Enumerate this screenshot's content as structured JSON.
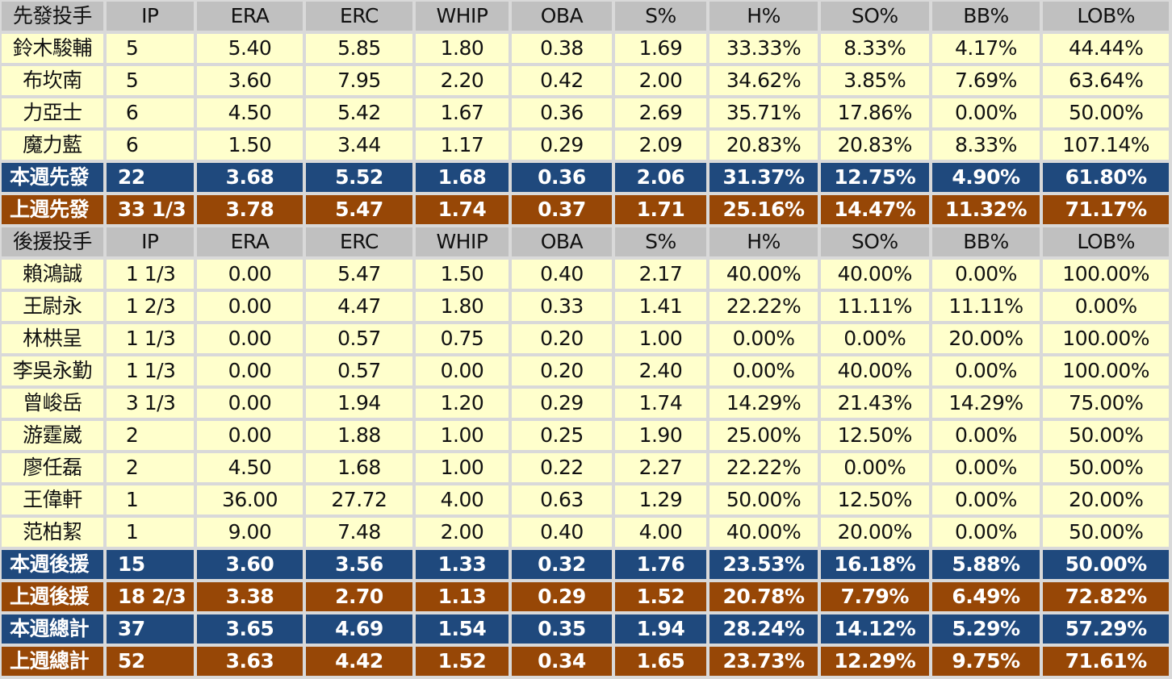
{
  "colors": {
    "header": "#c0c0c0",
    "row": "#ffffcc",
    "this_week": "#1f497d",
    "last_week": "#974706"
  },
  "columns": [
    "IP",
    "ERA",
    "ERC",
    "WHIP",
    "OBA",
    "S%",
    "H%",
    "SO%",
    "BB%",
    "LOB%"
  ],
  "sections": [
    {
      "title": "先發投手",
      "rows": [
        {
          "type": "row",
          "cells": [
            "鈴木駿輔",
            "5",
            "5.40",
            "5.85",
            "1.80",
            "0.38",
            "1.69",
            "33.33%",
            "8.33%",
            "4.17%",
            "44.44%"
          ]
        },
        {
          "type": "row",
          "cells": [
            "布坎南",
            "5",
            "3.60",
            "7.95",
            "2.20",
            "0.42",
            "2.00",
            "34.62%",
            "3.85%",
            "7.69%",
            "63.64%"
          ]
        },
        {
          "type": "row",
          "cells": [
            "力亞士",
            "6",
            "4.50",
            "5.42",
            "1.67",
            "0.36",
            "2.69",
            "35.71%",
            "17.86%",
            "0.00%",
            "50.00%"
          ]
        },
        {
          "type": "row",
          "cells": [
            "魔力藍",
            "6",
            "1.50",
            "3.44",
            "1.17",
            "0.29",
            "2.09",
            "20.83%",
            "20.83%",
            "8.33%",
            "107.14%"
          ]
        },
        {
          "type": "cur",
          "cells": [
            "本週先發",
            "22",
            "3.68",
            "5.52",
            "1.68",
            "0.36",
            "2.06",
            "31.37%",
            "12.75%",
            "4.90%",
            "61.80%"
          ]
        },
        {
          "type": "prev",
          "cells": [
            "上週先發",
            "33 1/3",
            "3.78",
            "5.47",
            "1.74",
            "0.37",
            "1.71",
            "25.16%",
            "14.47%",
            "11.32%",
            "71.17%"
          ]
        }
      ]
    },
    {
      "title": "後援投手",
      "rows": [
        {
          "type": "row",
          "cells": [
            "賴鴻誠",
            "1 1/3",
            "0.00",
            "5.47",
            "1.50",
            "0.40",
            "2.17",
            "40.00%",
            "40.00%",
            "0.00%",
            "100.00%"
          ]
        },
        {
          "type": "row",
          "cells": [
            "王尉永",
            "1 2/3",
            "0.00",
            "4.47",
            "1.80",
            "0.33",
            "1.41",
            "22.22%",
            "11.11%",
            "11.11%",
            "0.00%"
          ]
        },
        {
          "type": "row",
          "cells": [
            "林栱呈",
            "1 1/3",
            "0.00",
            "0.57",
            "0.75",
            "0.20",
            "1.00",
            "0.00%",
            "0.00%",
            "20.00%",
            "100.00%"
          ]
        },
        {
          "type": "row",
          "cells": [
            "李吳永勤",
            "1 1/3",
            "0.00",
            "0.57",
            "0.00",
            "0.20",
            "2.40",
            "0.00%",
            "40.00%",
            "0.00%",
            "100.00%"
          ]
        },
        {
          "type": "row",
          "cells": [
            "曾峻岳",
            "3 1/3",
            "0.00",
            "1.94",
            "1.20",
            "0.29",
            "1.74",
            "14.29%",
            "21.43%",
            "14.29%",
            "75.00%"
          ]
        },
        {
          "type": "row",
          "cells": [
            "游霆崴",
            "2",
            "0.00",
            "1.88",
            "1.00",
            "0.25",
            "1.90",
            "25.00%",
            "12.50%",
            "0.00%",
            "50.00%"
          ]
        },
        {
          "type": "row",
          "cells": [
            "廖任磊",
            "2",
            "4.50",
            "1.68",
            "1.00",
            "0.22",
            "2.27",
            "22.22%",
            "0.00%",
            "0.00%",
            "50.00%"
          ]
        },
        {
          "type": "row",
          "cells": [
            "王偉軒",
            "1",
            "36.00",
            "27.72",
            "4.00",
            "0.63",
            "1.29",
            "50.00%",
            "12.50%",
            "0.00%",
            "20.00%"
          ]
        },
        {
          "type": "row",
          "cells": [
            "范柏絜",
            "1",
            "9.00",
            "7.48",
            "2.00",
            "0.40",
            "4.00",
            "40.00%",
            "20.00%",
            "0.00%",
            "50.00%"
          ]
        },
        {
          "type": "cur",
          "cells": [
            "本週後援",
            "15",
            "3.60",
            "3.56",
            "1.33",
            "0.32",
            "1.76",
            "23.53%",
            "16.18%",
            "5.88%",
            "50.00%"
          ]
        },
        {
          "type": "prev",
          "cells": [
            "上週後援",
            "18 2/3",
            "3.38",
            "2.70",
            "1.13",
            "0.29",
            "1.52",
            "20.78%",
            "7.79%",
            "6.49%",
            "72.82%"
          ]
        },
        {
          "type": "cur",
          "cells": [
            "本週總計",
            "37",
            "3.65",
            "4.69",
            "1.54",
            "0.35",
            "1.94",
            "28.24%",
            "14.12%",
            "5.29%",
            "57.29%"
          ]
        },
        {
          "type": "prev",
          "cells": [
            "上週總計",
            "52",
            "3.63",
            "4.42",
            "1.52",
            "0.34",
            "1.65",
            "23.73%",
            "12.29%",
            "9.75%",
            "71.61%"
          ]
        }
      ]
    }
  ]
}
